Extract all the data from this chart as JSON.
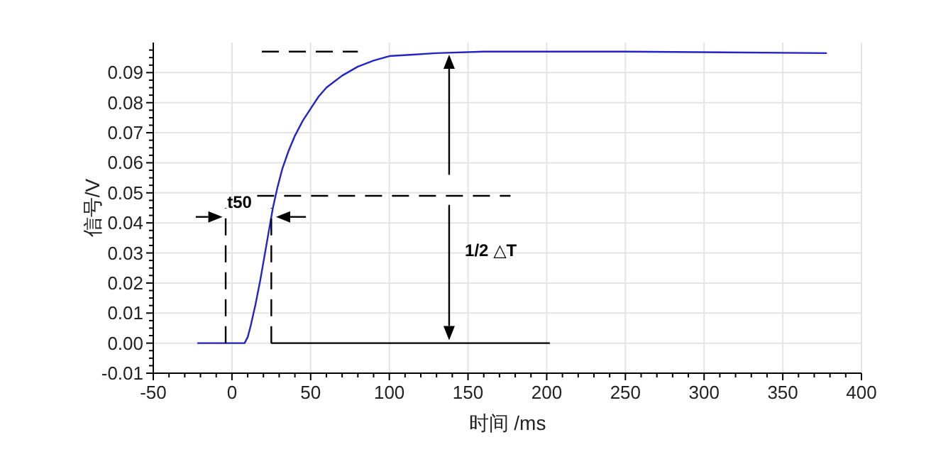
{
  "chart_data": {
    "type": "line",
    "xlabel": "时间 /ms",
    "ylabel": "信号/V",
    "xlim": [
      -50,
      400
    ],
    "xticks": [
      -50,
      0,
      50,
      100,
      150,
      200,
      250,
      300,
      350,
      400
    ],
    "ylim": [
      -0.01,
      0.1
    ],
    "yticks": [
      {
        "value": -0.01,
        "label": "-0.01"
      },
      {
        "value": 0,
        "label": "0.00"
      },
      {
        "value": 0.01,
        "label": "0.01"
      },
      {
        "value": 0.02,
        "label": "0.02"
      },
      {
        "value": 0.03,
        "label": "0.03"
      },
      {
        "value": 0.04,
        "label": "0.04"
      },
      {
        "value": 0.05,
        "label": "0.05"
      },
      {
        "value": 0.06,
        "label": "0.06"
      },
      {
        "value": 0.07,
        "label": "0.07"
      },
      {
        "value": 0.08,
        "label": "0.08"
      },
      {
        "value": 0.09,
        "label": "0.09"
      }
    ],
    "grid": true,
    "series": [
      {
        "color": "#2323c8",
        "x": [
          -22,
          0,
          8,
          10,
          12,
          15,
          18,
          20,
          23,
          26,
          29,
          32,
          36,
          40,
          45,
          50,
          55,
          60,
          65,
          70,
          80,
          90,
          100,
          115,
          130,
          160,
          250,
          378
        ],
        "values": [
          0,
          0,
          0,
          0.002,
          0.006,
          0.013,
          0.021,
          0.027,
          0.036,
          0.045,
          0.052,
          0.058,
          0.064,
          0.069,
          0.074,
          0.078,
          0.082,
          0.085,
          0.087,
          0.089,
          0.092,
          0.094,
          0.0955,
          0.096,
          0.0965,
          0.097,
          0.097,
          0.0965
        ]
      },
      {
        "color": "#000000",
        "line_style": "dashed",
        "x": [
          19,
          80
        ],
        "values": [
          0.097,
          0.097
        ]
      },
      {
        "color": "#000000",
        "line_style": "dashed",
        "x": [
          16,
          177
        ],
        "values": [
          0.049,
          0.049
        ]
      },
      {
        "color": "#000000",
        "line_style": "dashed",
        "x": [
          -4,
          -4
        ],
        "values": [
          0,
          0.045
        ]
      },
      {
        "color": "#000000",
        "line_style": "dashed",
        "x": [
          25,
          25
        ],
        "values": [
          0,
          0.045
        ]
      },
      {
        "color": "#000000",
        "line_style": "solid",
        "x": [
          25,
          202
        ],
        "values": [
          0,
          0
        ]
      }
    ],
    "annotations": [
      "t50",
      "1/2 △T"
    ]
  }
}
